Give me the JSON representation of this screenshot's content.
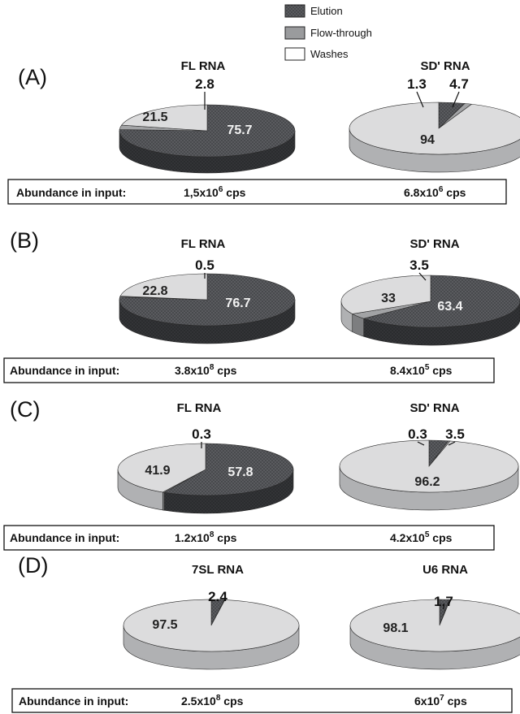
{
  "legend": {
    "items": [
      {
        "label": "Elution",
        "color": "#55565a",
        "hatched": true
      },
      {
        "label": "Flow-through",
        "color": "#9a9b9d",
        "hatched": false
      },
      {
        "label": "Washes",
        "color": "#ffffff",
        "hatched": false
      }
    ]
  },
  "colors": {
    "elution_top": "#5a5b5f",
    "elution_side": "#333437",
    "flow_top": "#a2a3a5",
    "flow_side": "#7d7e80",
    "washes_top": "#dcdcdd",
    "washes_side": "#b0b1b3"
  },
  "chart_data": [
    {
      "type": "pie",
      "panel": "(A)",
      "title": "FL RNA",
      "slices": [
        {
          "category": "Elution",
          "value": 75.7
        },
        {
          "category": "Washes",
          "value": 21.5
        },
        {
          "category": "Flow-through",
          "value": 2.8
        }
      ],
      "labels": [
        "75.7",
        "21.5",
        "2.8"
      ]
    },
    {
      "type": "pie",
      "panel": "(A)",
      "title": "SD' RNA",
      "slices": [
        {
          "category": "Elution",
          "value": 4.7
        },
        {
          "category": "Washes",
          "value": 94
        },
        {
          "category": "Flow-through",
          "value": 1.3
        }
      ],
      "labels": [
        "4.7",
        "94",
        "1.3"
      ]
    },
    {
      "type": "pie",
      "panel": "(B)",
      "title": "FL RNA",
      "slices": [
        {
          "category": "Elution",
          "value": 76.7
        },
        {
          "category": "Washes",
          "value": 22.8
        },
        {
          "category": "Flow-through",
          "value": 0.5
        }
      ],
      "labels": [
        "76.7",
        "22.8",
        "0.5"
      ]
    },
    {
      "type": "pie",
      "panel": "(B)",
      "title": "SD' RNA",
      "slices": [
        {
          "category": "Elution",
          "value": 63.4
        },
        {
          "category": "Washes",
          "value": 33
        },
        {
          "category": "Flow-through",
          "value": 3.5
        }
      ],
      "labels": [
        "63.4",
        "33",
        "3.5"
      ]
    },
    {
      "type": "pie",
      "panel": "(C)",
      "title": "FL RNA",
      "slices": [
        {
          "category": "Elution",
          "value": 57.8
        },
        {
          "category": "Washes",
          "value": 41.9
        },
        {
          "category": "Flow-through",
          "value": 0.3
        }
      ],
      "labels": [
        "57.8",
        "41.9",
        "0.3"
      ]
    },
    {
      "type": "pie",
      "panel": "(C)",
      "title": "SD' RNA",
      "slices": [
        {
          "category": "Elution",
          "value": 3.5
        },
        {
          "category": "Washes",
          "value": 96.2
        },
        {
          "category": "Flow-through",
          "value": 0.3
        }
      ],
      "labels": [
        "3.5",
        "96.2",
        "0.3"
      ]
    },
    {
      "type": "pie",
      "panel": "(D)",
      "title": "7SL RNA",
      "slices": [
        {
          "category": "Elution",
          "value": 2.4
        },
        {
          "category": "Washes",
          "value": 97.5
        },
        {
          "category": "Flow-through",
          "value": 0.1
        }
      ],
      "labels": [
        "2.4",
        "97.5",
        ""
      ]
    },
    {
      "type": "pie",
      "panel": "(D)",
      "title": "U6 RNA",
      "slices": [
        {
          "category": "Elution",
          "value": 1.7
        },
        {
          "category": "Washes",
          "value": 98.1
        },
        {
          "category": "Flow-through",
          "value": 0.2
        }
      ],
      "labels": [
        "1.7",
        "98.1",
        ""
      ]
    }
  ],
  "panels": [
    {
      "letter": "(A)",
      "abundance_label": "Abundance in input:",
      "left_value": "1,5x10",
      "left_exp": "6",
      "left_unit": " cps",
      "right_value": "6.8x10",
      "right_exp": "6",
      "right_unit": " cps"
    },
    {
      "letter": "(B)",
      "abundance_label": "Abundance in input:",
      "left_value": "3.8x10",
      "left_exp": "8",
      "left_unit": " cps",
      "right_value": "8.4x10",
      "right_exp": "5",
      "right_unit": " cps"
    },
    {
      "letter": "(C)",
      "abundance_label": "Abundance in input:",
      "left_value": "1.2x10",
      "left_exp": "8",
      "left_unit": " cps",
      "right_value": "4.2x10",
      "right_exp": "5",
      "right_unit": " cps"
    },
    {
      "letter": "(D)",
      "abundance_label": "Abundance in input:",
      "left_value": "2.5x10",
      "left_exp": "8",
      "left_unit": " cps",
      "right_value": "6x10",
      "right_exp": "7",
      "right_unit": " cps"
    }
  ]
}
